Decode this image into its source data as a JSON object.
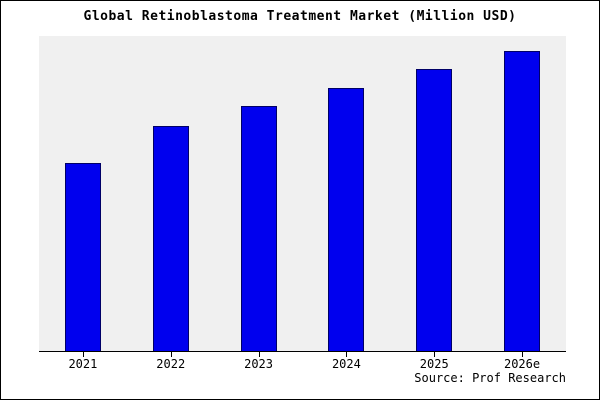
{
  "title": "Global Retinoblastoma Treatment Market (Million USD)",
  "source": "Source: Prof Research",
  "chart_data": {
    "type": "bar",
    "title": "Global Retinoblastoma Treatment Market (Million USD)",
    "categories": [
      "2021",
      "2022",
      "2023",
      "2024",
      "2025",
      "2026e"
    ],
    "values": [
      188,
      225,
      245,
      263,
      282,
      300
    ],
    "xlabel": "",
    "ylabel": "",
    "ylim": [
      0,
      315
    ],
    "grid": false,
    "legend_position": "none",
    "bar_color": "#0000ee",
    "bar_border_color": "#000066",
    "plot_background": "#f0f0f0",
    "axis_color": "#000000",
    "source_label": "Source: Prof Research"
  }
}
